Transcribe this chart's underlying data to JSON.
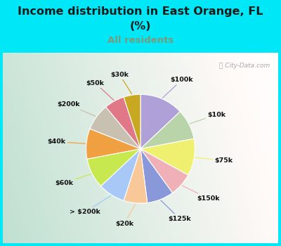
{
  "title_line1": "Income distribution in East Orange, FL",
  "title_line2": "(%)",
  "subtitle": "All residents",
  "title_color": "#1a1a1a",
  "subtitle_color": "#7a9a7a",
  "bg_cyan": "#00e8f8",
  "watermark": "ⓘ City-Data.com",
  "labels": [
    "$100k",
    "$10k",
    "$75k",
    "$150k",
    "$125k",
    "$20k",
    "> $200k",
    "$60k",
    "$40k",
    "$200k",
    "$50k",
    "$30k"
  ],
  "values": [
    13,
    9,
    11,
    7,
    8,
    7,
    8,
    9,
    9,
    8,
    6,
    5
  ],
  "colors": [
    "#b0a0d8",
    "#b8d4a8",
    "#f0f070",
    "#f0b0b8",
    "#8898d8",
    "#f8c898",
    "#a8c8f8",
    "#c8e850",
    "#f0a040",
    "#c8c0b0",
    "#e07888",
    "#c8a820"
  ],
  "line_colors": [
    "#b0a0d8",
    "#b8d4a8",
    "#f0f070",
    "#f0b0b8",
    "#8898d8",
    "#f8c898",
    "#a8c8f8",
    "#c8e850",
    "#f0a040",
    "#c8c0b0",
    "#e07888",
    "#c8a820"
  ],
  "start_angle": 90,
  "figsize": [
    4.0,
    3.5
  ],
  "dpi": 100
}
